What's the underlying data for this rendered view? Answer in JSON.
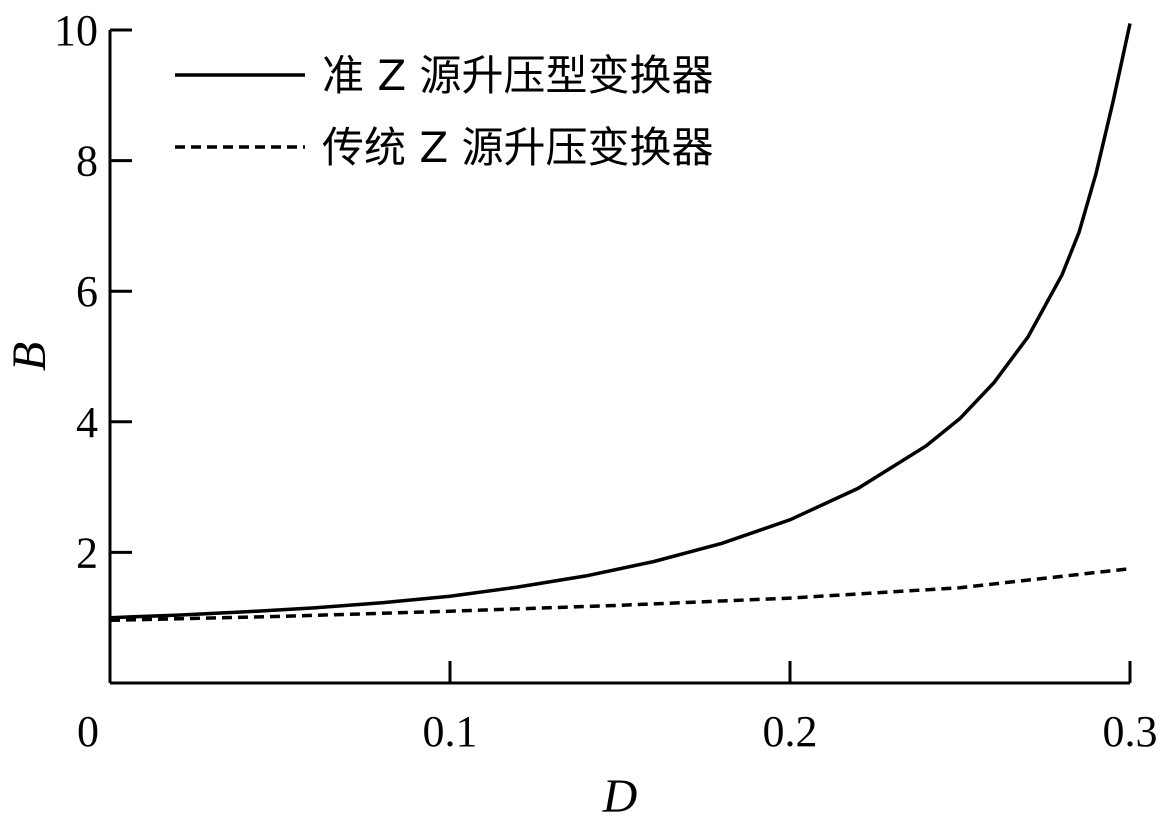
{
  "chart_data": {
    "type": "line",
    "xlabel": "D",
    "ylabel": "B",
    "xlim": [
      0,
      0.3
    ],
    "ylim": [
      0,
      10
    ],
    "x_ticks": [
      "0",
      "0.1",
      "0.2",
      "0.3"
    ],
    "y_ticks": [
      "2",
      "4",
      "6",
      "8",
      "10"
    ],
    "grid": false,
    "legend_position": "top-left",
    "series": [
      {
        "name": "准 Z 源升压型变换器",
        "style": "solid",
        "color": "#000000",
        "x": [
          0,
          0.02,
          0.04,
          0.06,
          0.08,
          0.1,
          0.12,
          0.14,
          0.16,
          0.18,
          0.2,
          0.22,
          0.24,
          0.25,
          0.26,
          0.27,
          0.28,
          0.285,
          0.29,
          0.295,
          0.3
        ],
        "y": [
          1.0,
          1.04,
          1.09,
          1.15,
          1.23,
          1.33,
          1.47,
          1.64,
          1.86,
          2.14,
          2.5,
          2.98,
          3.63,
          4.05,
          4.6,
          5.3,
          6.25,
          6.9,
          7.8,
          8.9,
          10.1
        ]
      },
      {
        "name": "传统 Z 源升压变换器",
        "style": "dashed",
        "color": "#000000",
        "x": [
          0,
          0.05,
          0.1,
          0.15,
          0.2,
          0.25,
          0.3
        ],
        "y": [
          0.96,
          1.02,
          1.1,
          1.19,
          1.3,
          1.46,
          1.75
        ]
      }
    ]
  }
}
